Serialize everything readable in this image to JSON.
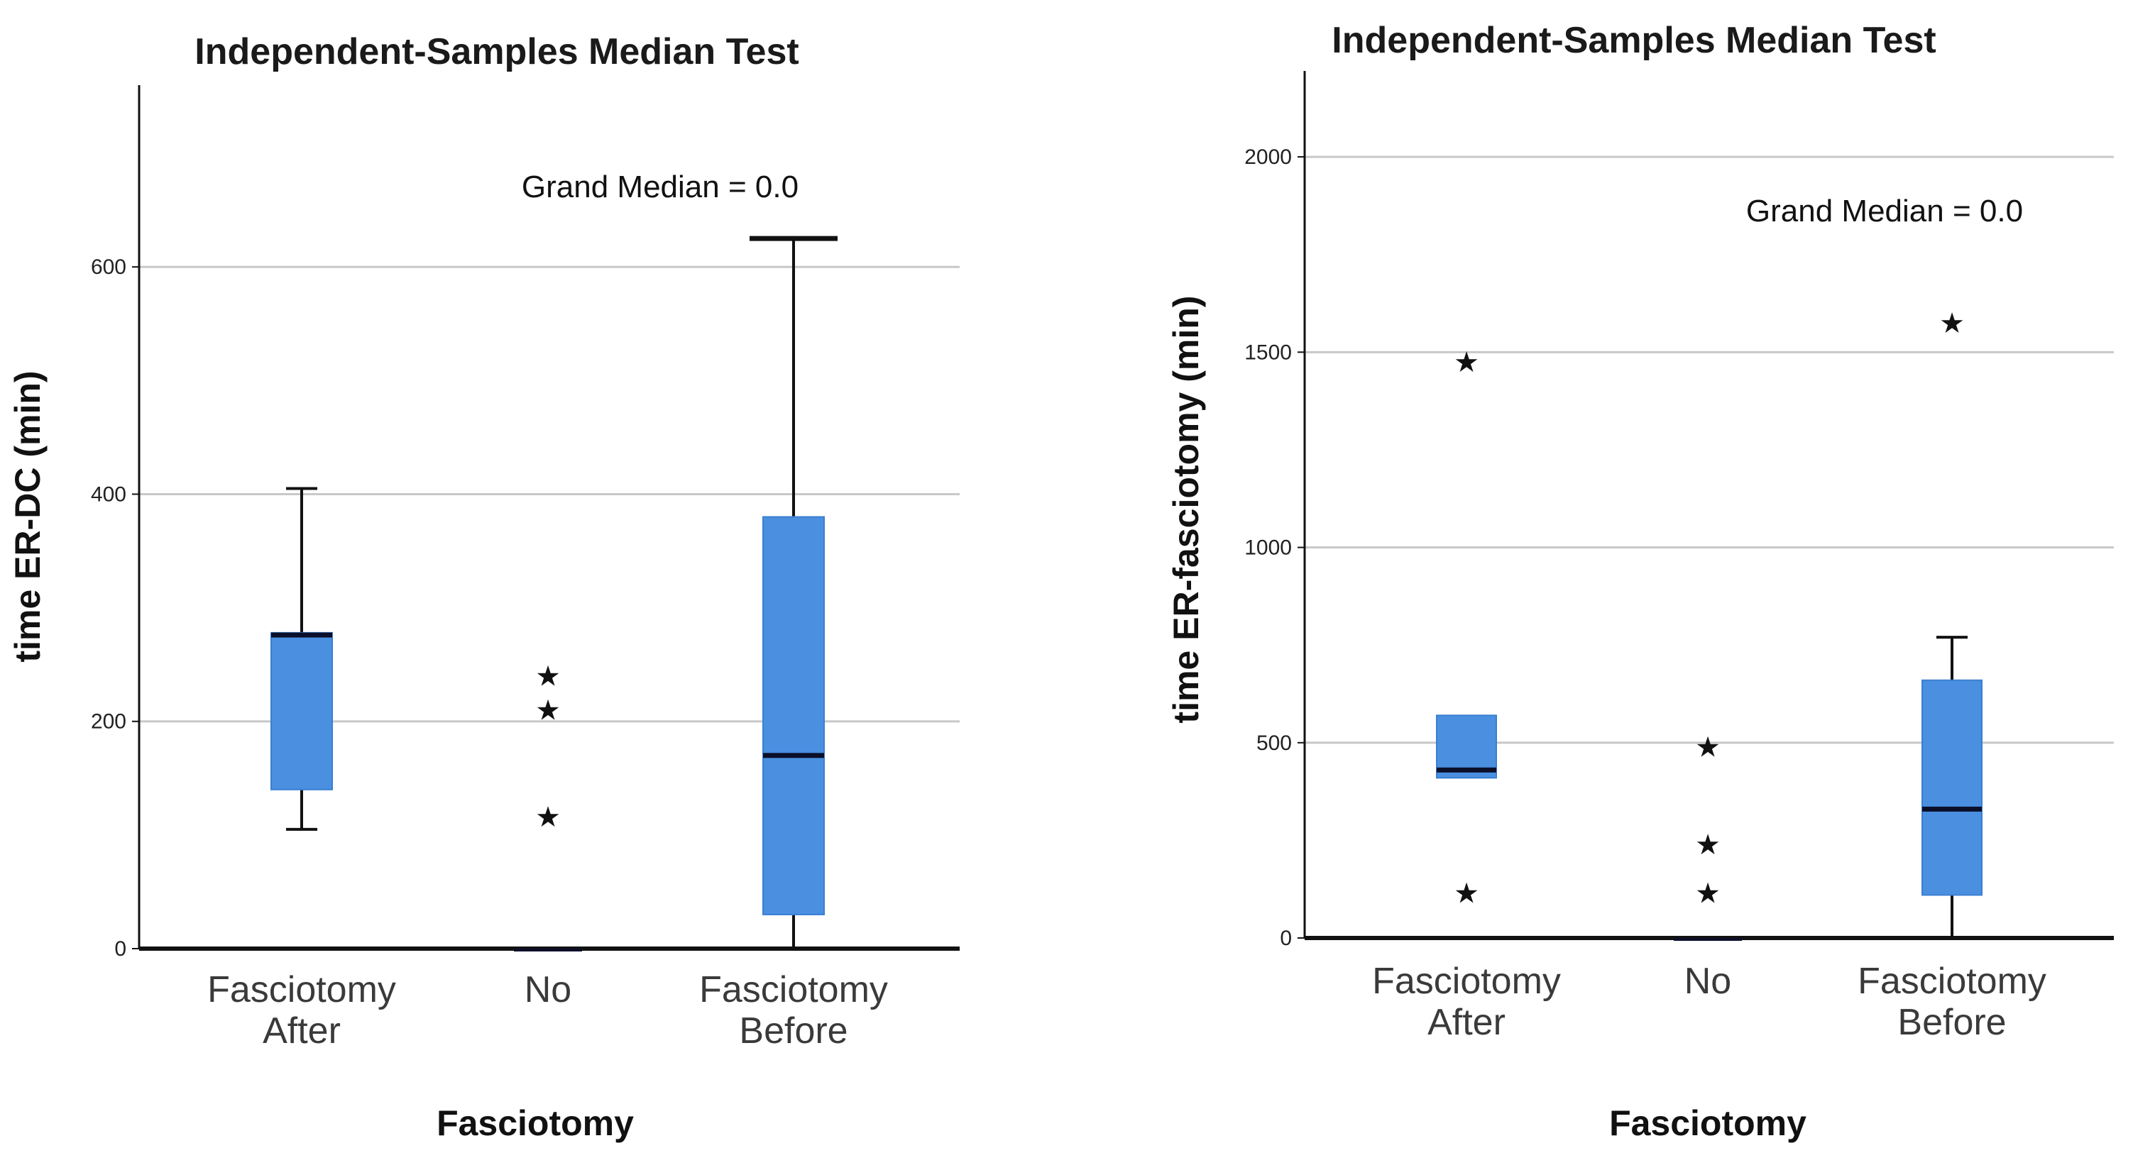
{
  "colors": {
    "box_fill": "#4a8fe0",
    "box_stroke": "#3a7fd0",
    "median": "#0b0f2a",
    "whisker": "#111111",
    "gridline": "#c8c8c8",
    "axis": "#111111"
  },
  "chart_data": [
    {
      "type": "boxplot",
      "title": "Independent-Samples Median Test",
      "annotation": "Grand Median = 0.0",
      "xlabel": "Fasciotomy",
      "ylabel": "time ER-DC (min)",
      "ylim": [
        0,
        760
      ],
      "yticks": [
        0,
        200,
        400,
        600
      ],
      "grid": true,
      "categories": [
        {
          "label_lines": [
            "Fasciotomy",
            "After"
          ]
        },
        {
          "label_lines": [
            "No"
          ]
        },
        {
          "label_lines": [
            "Fasciotomy",
            "Before"
          ]
        }
      ],
      "series": [
        {
          "whisker_low": 105,
          "q1": 140,
          "median": 276,
          "q3": 278,
          "whisker_high": 405,
          "outliers": []
        },
        {
          "whisker_low": 0,
          "q1": 0,
          "median": 0,
          "q3": 0,
          "whisker_high": 0,
          "outliers": [
            116,
            210,
            240
          ]
        },
        {
          "whisker_low": 0,
          "q1": 30,
          "median": 170,
          "q3": 380,
          "whisker_high": 625,
          "outliers": []
        }
      ]
    },
    {
      "type": "boxplot",
      "title": "Independent-Samples Median Test",
      "annotation": "Grand Median = 0.0",
      "xlabel": "Fasciotomy",
      "ylabel": "time ER-fasciotomy (min)",
      "ylim": [
        0,
        2220
      ],
      "yticks": [
        0,
        500,
        1000,
        1500,
        2000
      ],
      "grid": true,
      "categories": [
        {
          "label_lines": [
            "Fasciotomy",
            "After"
          ]
        },
        {
          "label_lines": [
            "No"
          ]
        },
        {
          "label_lines": [
            "Fasciotomy",
            "Before"
          ]
        }
      ],
      "series": [
        {
          "whisker_low": 410,
          "q1": 410,
          "median": 430,
          "q3": 570,
          "whisker_high": 570,
          "outliers": [
            115,
            1475
          ]
        },
        {
          "whisker_low": 0,
          "q1": 0,
          "median": 0,
          "q3": 0,
          "whisker_high": 0,
          "outliers": [
            115,
            240,
            490
          ]
        },
        {
          "whisker_low": 0,
          "q1": 110,
          "median": 330,
          "q3": 660,
          "whisker_high": 770,
          "outliers": [
            1575
          ]
        }
      ]
    }
  ]
}
